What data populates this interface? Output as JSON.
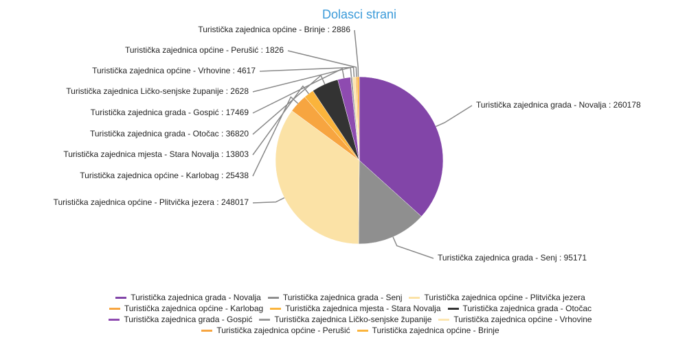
{
  "chart_data": {
    "type": "pie",
    "title": "Dolasci strani",
    "categories": [
      "Turistička zajednica grada - Novalja",
      "Turistička zajednica grada - Senj",
      "Turistička zajednica općine - Plitvička jezera",
      "Turistička zajednica općine - Karlobag",
      "Turistička zajednica mjesta - Stara Novalja",
      "Turistička zajednica grada - Otočac",
      "Turistička zajednica grada - Gospić",
      "Turistička zajednica Ličko-senjske županije",
      "Turistička zajednica općine - Vrhovine",
      "Turistička zajednica općine - Perušić",
      "Turistička zajednica općine - Brinje"
    ],
    "values": [
      260178,
      95171,
      248017,
      25438,
      13803,
      36820,
      17469,
      2628,
      4617,
      1826,
      2886
    ],
    "value_labels": [
      "Turistička zajednica grada - Novalja : 260178",
      "Turistička zajednica grada - Senj : 95171",
      "Turistička zajednica općine - Plitvička jezera : 248017",
      "Turistička zajednica općine - Karlobag : 25438",
      "Turistička zajednica mjesta - Stara Novalja : 13803",
      "Turistička zajednica grada - Otočac : 36820",
      "Turistička zajednica grada - Gospić : 17469",
      "Turistička zajednica Ličko-senjske županije : 2628",
      "Turistička zajednica općine - Vrhovine : 4617",
      "Turistička zajednica općine - Perušić : 1826",
      "Turistička zajednica općine - Brinje : 2886"
    ],
    "colors": [
      "#8245a8",
      "#8f8f8f",
      "#fbe2a6",
      "#f7a540",
      "#fbb43c",
      "#333333",
      "#8e4bb0",
      "#9a9a9a",
      "#fce6b2",
      "#f7a540",
      "#fbb43c"
    ],
    "legend": "bottom"
  }
}
